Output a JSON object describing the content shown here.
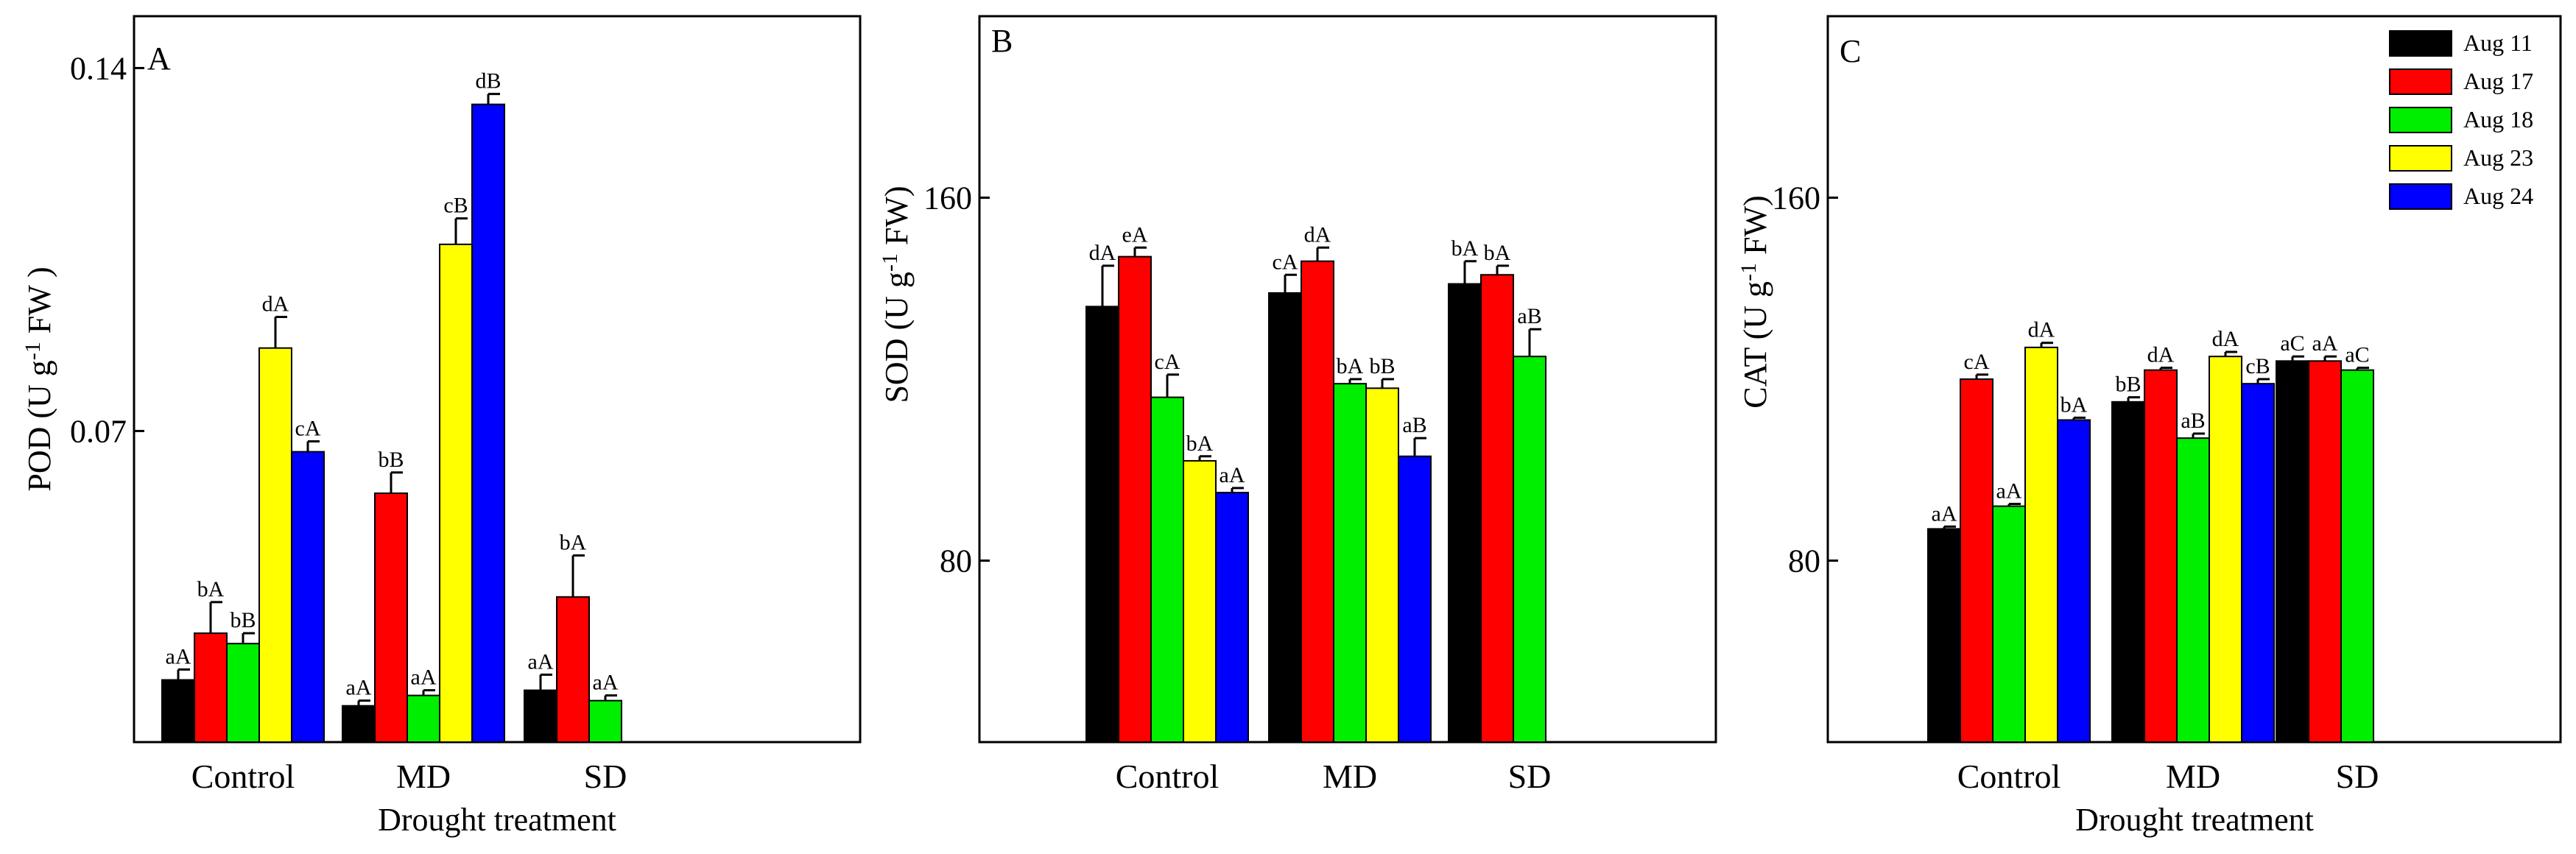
{
  "chart_data": [
    {
      "type": "bar",
      "panel": "A",
      "xlabel": "Drought treatment",
      "ylabel": "POD (U g",
      "ylabel_sup": "-1",
      "ylabel_end": " FW )",
      "ylim": [
        0.01,
        0.15
      ],
      "yticks": [
        0.07,
        0.14
      ],
      "ytick_labels": [
        "0.07",
        "0.14"
      ],
      "categories": [
        "Control",
        "MD",
        "SD"
      ],
      "series": [
        {
          "name": "Aug 11",
          "values": [
            0.022,
            0.017,
            0.02
          ],
          "errors": [
            0.002,
            0.001,
            0.003
          ],
          "labels": [
            "aA",
            "aA",
            "aA"
          ]
        },
        {
          "name": "Aug 17",
          "values": [
            0.031,
            0.058,
            0.038
          ],
          "errors": [
            0.006,
            0.004,
            0.008
          ],
          "labels": [
            "bA",
            "bB",
            "bA"
          ]
        },
        {
          "name": "Aug 18",
          "values": [
            0.029,
            0.019,
            0.018
          ],
          "errors": [
            0.002,
            0.001,
            0.001
          ],
          "labels": [
            "bB",
            "aA",
            "aA"
          ]
        },
        {
          "name": "Aug 23",
          "values": [
            0.086,
            0.106,
            null
          ],
          "errors": [
            0.006,
            0.005,
            null
          ],
          "labels": [
            "dA",
            "cB",
            ""
          ]
        },
        {
          "name": "Aug 24",
          "values": [
            0.066,
            0.133,
            null
          ],
          "errors": [
            0.002,
            0.002,
            null
          ],
          "labels": [
            "cA",
            "dB",
            ""
          ]
        }
      ]
    },
    {
      "type": "bar",
      "panel": "B",
      "xlabel": "",
      "ylabel": "SOD (U g",
      "ylabel_sup": "-1",
      "ylabel_end": " FW)",
      "ylim": [
        40,
        200
      ],
      "yticks": [
        80,
        160
      ],
      "ytick_labels": [
        "80",
        "160"
      ],
      "categories": [
        "Control",
        "MD",
        "SD"
      ],
      "series": [
        {
          "name": "Aug 11",
          "values": [
            136,
            139,
            141
          ],
          "errors": [
            9,
            4,
            5
          ],
          "labels": [
            "dA",
            "cA",
            "bA"
          ]
        },
        {
          "name": "Aug 17",
          "values": [
            147,
            146,
            143
          ],
          "errors": [
            2,
            3,
            2
          ],
          "labels": [
            "eA",
            "dA",
            "bA"
          ]
        },
        {
          "name": "Aug 18",
          "values": [
            116,
            119,
            125
          ],
          "errors": [
            5,
            1,
            6
          ],
          "labels": [
            "cA",
            "bA",
            "aB"
          ]
        },
        {
          "name": "Aug 23",
          "values": [
            102,
            118,
            null
          ],
          "errors": [
            1,
            2,
            null
          ],
          "labels": [
            "bA",
            "bB",
            ""
          ]
        },
        {
          "name": "Aug 24",
          "values": [
            95,
            103,
            null
          ],
          "errors": [
            1,
            4,
            null
          ],
          "labels": [
            "aA",
            "aB",
            ""
          ]
        }
      ]
    },
    {
      "type": "bar",
      "panel": "C",
      "xlabel": "Drought treatment",
      "ylabel": "CAT (U g",
      "ylabel_sup": "-1",
      "ylabel_end": " FW)",
      "ylim": [
        40,
        200
      ],
      "yticks": [
        80,
        160
      ],
      "ytick_labels": [
        "80",
        "160"
      ],
      "categories": [
        "Control",
        "MD",
        "SD"
      ],
      "legend": {
        "position": "top-right"
      },
      "series": [
        {
          "name": "Aug 11",
          "values": [
            87,
            115,
            124
          ],
          "errors": [
            0.5,
            1,
            1
          ],
          "labels": [
            "aA",
            "bB",
            "aC"
          ]
        },
        {
          "name": "Aug 17",
          "values": [
            120,
            122,
            124
          ],
          "errors": [
            1,
            0.5,
            1
          ],
          "labels": [
            "cA",
            "dA",
            "aA"
          ]
        },
        {
          "name": "Aug 18",
          "values": [
            92,
            107,
            122
          ],
          "errors": [
            0.5,
            1,
            0.5
          ],
          "labels": [
            "aA",
            "aB",
            "aC"
          ]
        },
        {
          "name": "Aug 23",
          "values": [
            127,
            125,
            null
          ],
          "errors": [
            1,
            1,
            null
          ],
          "labels": [
            "dA",
            "dA",
            ""
          ]
        },
        {
          "name": "Aug 24",
          "values": [
            111,
            119,
            null
          ],
          "errors": [
            0.5,
            1,
            null
          ],
          "labels": [
            "bA",
            "cB",
            ""
          ]
        }
      ]
    }
  ],
  "colors": {
    "Aug 11": "#000000",
    "Aug 17": "#ff0000",
    "Aug 18": "#00ee00",
    "Aug 23": "#ffff00",
    "Aug 24": "#0000ff"
  }
}
